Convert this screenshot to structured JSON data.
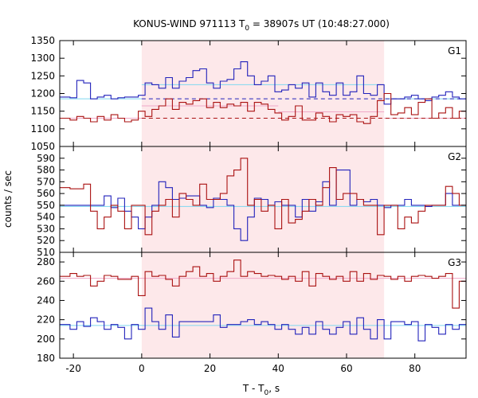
{
  "chart_data": {
    "type": "line",
    "title": "KONUS-WIND 971113 T0 = 38907s UT (10:48:27.000)",
    "title_parts": {
      "prefix": "KONUS-WIND 971113 T",
      "sub": "0",
      "suffix": " = 38907s UT (10:48:27.000)"
    },
    "xlabel": "T - T0, s",
    "xlabel_parts": {
      "prefix": "T - T",
      "sub": "0",
      "suffix": ", s"
    },
    "ylabel": "counts / sec",
    "xlim": [
      -24,
      95
    ],
    "x_ticks": [
      -20,
      0,
      20,
      40,
      60,
      80
    ],
    "shaded_interval": [
      0,
      71
    ],
    "colors": {
      "shade": "#fde8ea",
      "series_a": "#2222bb",
      "series_b": "#aa1111",
      "fit_a": "#7fd8f0",
      "fit_b": "#f0a8c8"
    },
    "bin_edges": [
      -24,
      -21,
      -19,
      -17,
      -15,
      -13,
      -11,
      -9,
      -7,
      -5,
      -3,
      -1,
      1,
      3,
      5,
      7,
      9,
      11,
      13,
      15,
      17,
      19,
      21,
      23,
      25,
      27,
      29,
      31,
      33,
      35,
      37,
      39,
      41,
      43,
      45,
      47,
      49,
      51,
      53,
      55,
      57,
      59,
      61,
      63,
      65,
      67,
      69,
      71,
      73,
      75,
      77,
      79,
      81,
      83,
      85,
      87,
      89,
      91,
      93,
      95
    ],
    "panels": [
      {
        "name": "G1",
        "ylim": [
          1050,
          1350
        ],
        "y_ticks": [
          1050,
          1100,
          1150,
          1200,
          1250,
          1300,
          1350
        ],
        "series": [
          {
            "color": "#2222bb",
            "values": [
              1190,
              1188,
              1237,
              1230,
              1185,
              1190,
              1195,
              1185,
              1188,
              1190,
              1190,
              1195,
              1230,
              1225,
              1215,
              1245,
              1215,
              1235,
              1245,
              1265,
              1270,
              1230,
              1215,
              1235,
              1240,
              1270,
              1290,
              1250,
              1225,
              1235,
              1250,
              1205,
              1210,
              1225,
              1215,
              1230,
              1190,
              1230,
              1205,
              1195,
              1230,
              1195,
              1205,
              1250,
              1200,
              1195,
              1225,
              1170,
              1185,
              1185,
              1190,
              1195,
              1185,
              1180,
              1190,
              1195,
              1205,
              1190,
              1185
            ]
          },
          {
            "color": "#aa1111",
            "values": [
              1130,
              1125,
              1135,
              1130,
              1120,
              1135,
              1125,
              1140,
              1130,
              1120,
              1125,
              1150,
              1135,
              1155,
              1165,
              1185,
              1155,
              1175,
              1170,
              1180,
              1185,
              1160,
              1175,
              1160,
              1170,
              1165,
              1175,
              1150,
              1175,
              1170,
              1155,
              1145,
              1125,
              1135,
              1165,
              1125,
              1125,
              1145,
              1135,
              1120,
              1140,
              1135,
              1140,
              1120,
              1115,
              1135,
              1180,
              1200,
              1140,
              1145,
              1160,
              1140,
              1175,
              1185,
              1130,
              1145,
              1160,
              1130,
              1150
            ]
          }
        ],
        "fits": [
          {
            "color": "#7fd8f0",
            "style": "solid",
            "segments": [
              [
                -24,
                0,
                1185
              ],
              [
                0,
                71,
                1225
              ],
              [
                71,
                95,
                1185
              ]
            ]
          },
          {
            "color": "#2222bb",
            "style": "dashed",
            "segments": [
              [
                0,
                95,
                1185
              ]
            ]
          },
          {
            "color": "#f0a8c8",
            "style": "solid",
            "segments": [
              [
                -24,
                0,
                1130
              ],
              [
                0,
                40,
                1165
              ],
              [
                40,
                71,
                1148
              ],
              [
                71,
                95,
                1130
              ]
            ]
          },
          {
            "color": "#aa1111",
            "style": "dashed",
            "segments": [
              [
                0,
                95,
                1130
              ]
            ]
          }
        ]
      },
      {
        "name": "G2",
        "ylim": [
          510,
          600
        ],
        "y_ticks": [
          510,
          520,
          530,
          540,
          550,
          560,
          570,
          580,
          590
        ],
        "series": [
          {
            "color": "#2222bb",
            "values": [
              550,
              550,
              550,
              550,
              550,
              550,
              558,
              548,
              556,
              545,
              540,
              530,
              540,
              550,
              570,
              565,
              555,
              556,
              558,
              558,
              550,
              548,
              556,
              555,
              550,
              530,
              520,
              540,
              556,
              555,
              550,
              553,
              550,
              550,
              540,
              555,
              545,
              553,
              570,
              550,
              580,
              580,
              550,
              555,
              553,
              555,
              550,
              548,
              550,
              550,
              555,
              550,
              550,
              549,
              550,
              550,
              560,
              550,
              550
            ]
          },
          {
            "color": "#aa1111",
            "values": [
              565,
              564,
              564,
              568,
              545,
              530,
              540,
              550,
              545,
              530,
              550,
              550,
              525,
              545,
              550,
              555,
              540,
              560,
              555,
              550,
              568,
              555,
              555,
              560,
              575,
              580,
              590,
              550,
              555,
              545,
              550,
              530,
              555,
              535,
              538,
              545,
              555,
              550,
              565,
              582,
              555,
              560,
              560,
              555,
              550,
              550,
              525,
              550,
              550,
              530,
              540,
              535,
              545,
              550,
              550,
              550,
              566,
              560,
              550
            ]
          }
        ],
        "fits": [
          {
            "color": "#7fd8f0",
            "style": "solid",
            "segments": [
              [
                -24,
                95,
                549
              ]
            ]
          }
        ]
      },
      {
        "name": "G3",
        "ylim": [
          180,
          290
        ],
        "y_ticks": [
          180,
          200,
          220,
          240,
          260,
          280
        ],
        "series": [
          {
            "color": "#aa1111",
            "values": [
              265,
              268,
              265,
              266,
              255,
              260,
              266,
              265,
              262,
              262,
              265,
              245,
              270,
              265,
              266,
              262,
              255,
              265,
              270,
              275,
              265,
              268,
              260,
              265,
              270,
              282,
              265,
              270,
              268,
              265,
              266,
              265,
              262,
              265,
              260,
              270,
              255,
              268,
              265,
              262,
              265,
              260,
              270,
              260,
              268,
              262,
              266,
              265,
              262,
              265,
              260,
              265,
              266,
              265,
              263,
              265,
              268,
              232,
              260
            ]
          },
          {
            "color": "#2222bb",
            "values": [
              215,
              210,
              218,
              213,
              222,
              218,
              210,
              215,
              212,
              200,
              215,
              210,
              232,
              218,
              210,
              225,
              202,
              218,
              218,
              218,
              218,
              218,
              225,
              212,
              215,
              215,
              218,
              220,
              215,
              218,
              215,
              210,
              215,
              210,
              205,
              212,
              205,
              218,
              210,
              205,
              212,
              218,
              205,
              222,
              210,
              200,
              220,
              200,
              218,
              218,
              215,
              218,
              198,
              215,
              212,
              205,
              215,
              210,
              215
            ]
          }
        ],
        "fits": [
          {
            "color": "#f0a8c8",
            "style": "solid",
            "segments": [
              [
                -24,
                95,
                263
              ]
            ]
          },
          {
            "color": "#7fd8f0",
            "style": "solid",
            "segments": [
              [
                -24,
                95,
                214
              ]
            ]
          }
        ]
      }
    ]
  }
}
